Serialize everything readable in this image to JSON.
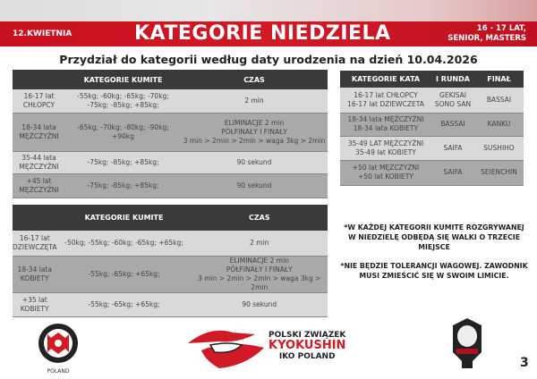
{
  "header": {
    "date": "12.KWIETNIA",
    "title": "KATEGORIE NIEDZIELA",
    "ages_line1": "16 - 17 LAT,",
    "ages_line2": "SENIOR, MASTERS"
  },
  "subtitle": "Przydział do kategorii według daty urodzenia na dzień 10.04.2026",
  "kumite_men": {
    "headers": [
      "",
      "KATEGORIE KUMITE",
      "CZAS"
    ],
    "rows": [
      {
        "group": [
          "16-17 lat",
          "CHŁOPCY"
        ],
        "weights": [
          "-55kg; -60kg; -65kg; -70kg;",
          "-75kg; -85kg; +85kg;"
        ],
        "time": [
          "2 min"
        ]
      },
      {
        "group": [
          "18-34 lata",
          "MĘŻCZYŹNI"
        ],
        "weights": [
          "-65kg; -70kg; -80kg; -90kg;",
          "+90kg"
        ],
        "time": [
          "ELIMINACJE 2 min",
          "PÓŁFINAŁY I FINAŁY",
          "3 min > 2min > 2min > waga 3kg > 2min"
        ]
      },
      {
        "group": [
          "35-44 lata",
          "MĘŻCZYŹNI"
        ],
        "weights": [
          "-75kg; -85kg; +85kg;"
        ],
        "time": [
          "90 sekund"
        ]
      },
      {
        "group": [
          "+45 lat",
          "MĘŻCZYŹNI"
        ],
        "weights": [
          "-75kg; -85kg; +85kg;"
        ],
        "time": [
          "90 sekund"
        ]
      }
    ]
  },
  "kata": {
    "headers": [
      "KATEGORIE KATA",
      "I RUNDA",
      "FINAŁ"
    ],
    "rows": [
      {
        "group": [
          "16-17 lat CHŁOPCY",
          "16-17 lat DZIEWCZETA"
        ],
        "round1": [
          "GEKISAI",
          "SONO SAN"
        ],
        "final": "BASSAI"
      },
      {
        "group": [
          "18-34 lata MĘŻCZYŹNI",
          "18-34 lata KOBIETY"
        ],
        "round1": [
          "BASSAI"
        ],
        "final": "KANKU"
      },
      {
        "group": [
          "35-49 LAT MĘŻCZYŹNI",
          "35-49 lat KOBIETY"
        ],
        "round1": [
          "SAIFA"
        ],
        "final": "SUSHIHO"
      },
      {
        "group": [
          "+50 lat MĘŻCZYŹNI",
          "+50 lat KOBIETY"
        ],
        "round1": [
          "SAIFA"
        ],
        "final": "SEIENCHIN"
      }
    ]
  },
  "kumite_women": {
    "headers": [
      "",
      "KATEGORIE KUMITE",
      "CZAS"
    ],
    "rows": [
      {
        "group": [
          "16-17 lat",
          "DZIEWCZĘTA"
        ],
        "weights": [
          "-50kg; -55kg; -60kg; -65kg; +65kg;"
        ],
        "time": [
          "2 min"
        ]
      },
      {
        "group": [
          "18-34 lata",
          "KOBIETY"
        ],
        "weights": [
          "-55kg; -65kg; +65kg;"
        ],
        "time": [
          "ELIMINACJE 2 min",
          "PÓŁFINAŁY I FINAŁY",
          "3 min > 2min > 2min > waga 3kg > 2min"
        ]
      },
      {
        "group": [
          "+35 lat",
          "KOBIETY"
        ],
        "weights": [
          "-55kg; -65kg; +65kg;"
        ],
        "time": [
          "90 sekund"
        ]
      }
    ]
  },
  "notes": [
    "*W KAŻDEJ KATEGORII KUMITE ROZGRYWANEJ W NIEDZIELĘ ODBĘDĄ SIĘ WALKI O TRZECIE MIEJSCE",
    "*NIE BĘDZIE TOLERANCJI WAGOWEJ. ZAWODNIK MUSI ZMIEŚCIĆ SIĘ W SWOIM LIMICIE."
  ],
  "footer": {
    "iko_logo_text": "POLAND",
    "pzk_line1": "POLSKI ZWIĄZEK",
    "pzk_line2": "KYOKUSHIN",
    "pzk_line3": "IKO POLAND",
    "page_number": "3"
  },
  "colors": {
    "brand_red": "#d21a26",
    "header_dark": "#3a3a3a",
    "row_light": "#d9d9d9",
    "row_dark": "#a9a9a9"
  }
}
